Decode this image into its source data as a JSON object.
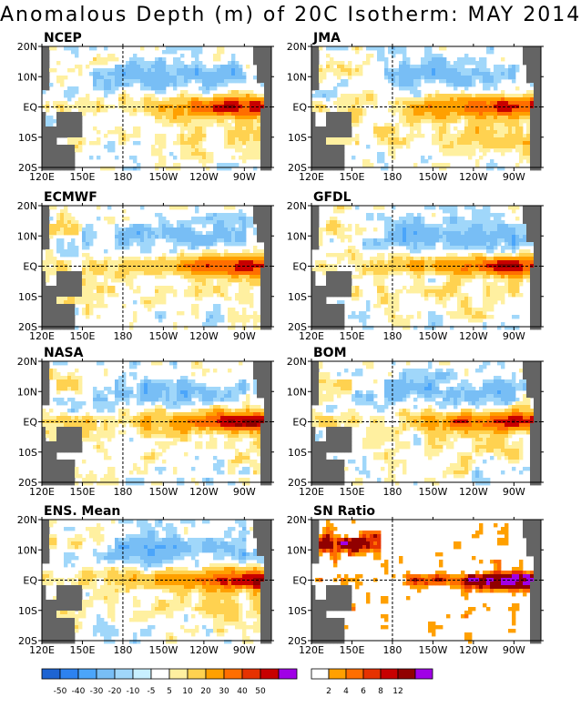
{
  "title": "Anomalous Depth (m) of 20C Isotherm: MAY 2014",
  "x_ticks": [
    "120E",
    "150E",
    "180",
    "150W",
    "120W",
    "90W"
  ],
  "y_ticks": [
    "20N",
    "10N",
    "EQ",
    "10S",
    "20S"
  ],
  "colors": {
    "neg": [
      "#1e64d2",
      "#2d82f0",
      "#4ba5fa",
      "#78bef5",
      "#a0d7fa",
      "#c8f0ff"
    ],
    "neutral": "#ffffff",
    "pos": [
      "#fff0a0",
      "#ffd250",
      "#ffa000",
      "#ff6e00",
      "#e63200",
      "#c80000",
      "#910000",
      "#a000e6"
    ],
    "sn": [
      "#ffffff",
      "#ffa000",
      "#ff6e00",
      "#e63200",
      "#c80000",
      "#910000",
      "#a000e6"
    ],
    "land": "#646464"
  },
  "colorbar_main_labels": [
    "-50",
    "-40",
    "-30",
    "-20",
    "-10",
    "-5",
    "5",
    "10",
    "20",
    "30",
    "40",
    "50"
  ],
  "colorbar_sn_labels": [
    "2",
    "4",
    "6",
    "8",
    "12"
  ],
  "chart_data": [
    {
      "type": "heatmap",
      "panel": "NCEP",
      "xlim": [
        "120E",
        "70W"
      ],
      "ylim": [
        "20S",
        "20N"
      ],
      "pattern": "positive anomaly band along EQ from 160W to 80W, max near 90W; negative anomalies 10N-20N central Pacific"
    },
    {
      "type": "heatmap",
      "panel": "JMA",
      "xlim": [
        "120E",
        "70W"
      ],
      "ylim": [
        "20S",
        "20N"
      ],
      "pattern": "strong positive band along EQ and 5S-15S across basin"
    },
    {
      "type": "heatmap",
      "panel": "ECMWF",
      "xlim": [
        "120E",
        "70W"
      ],
      "ylim": [
        "20S",
        "20N"
      ],
      "pattern": "positive band along EQ, negative patches north of EQ"
    },
    {
      "type": "heatmap",
      "panel": "GFDL",
      "xlim": [
        "120E",
        "70W"
      ],
      "ylim": [
        "20S",
        "20N"
      ],
      "pattern": "positive band along EQ east of 180"
    },
    {
      "type": "heatmap",
      "panel": "NASA",
      "xlim": [
        "120E",
        "70W"
      ],
      "ylim": [
        "20S",
        "20N"
      ],
      "pattern": "positive band along EQ east of 160W, negative 5N-15N"
    },
    {
      "type": "heatmap",
      "panel": "BOM",
      "xlim": [
        "120E",
        "70W"
      ],
      "ylim": [
        "20S",
        "20N"
      ],
      "pattern": "positive band along EQ, max near 110W"
    },
    {
      "type": "heatmap",
      "panel": "ENS. Mean",
      "xlim": [
        "120E",
        "70W"
      ],
      "ylim": [
        "20S",
        "20N"
      ],
      "pattern": "ensemble mean: positive equatorial band 170W-80W"
    },
    {
      "type": "heatmap",
      "panel": "SN Ratio",
      "xlim": [
        "120E",
        "70W"
      ],
      "ylim": [
        "20S",
        "20N"
      ],
      "pattern": "high signal-to-noise along EQ 150W-80W and western Pacific 10N-15N"
    }
  ],
  "panels": [
    {
      "label": "NCEP"
    },
    {
      "label": "JMA"
    },
    {
      "label": "ECMWF"
    },
    {
      "label": "GFDL"
    },
    {
      "label": "NASA"
    },
    {
      "label": "BOM"
    },
    {
      "label": "ENS. Mean"
    },
    {
      "label": "SN Ratio"
    }
  ]
}
